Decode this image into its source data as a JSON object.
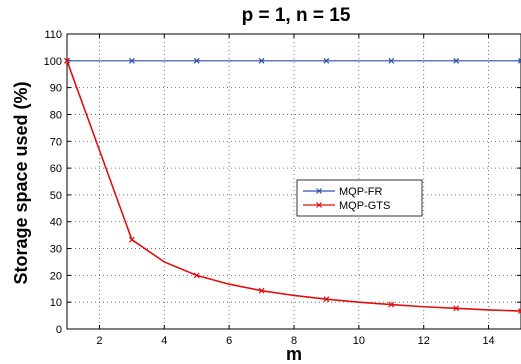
{
  "chart_data": {
    "type": "line",
    "title": "p = 1, n = 15",
    "xlabel": "m",
    "ylabel": "Storage space used (%)",
    "xlim": [
      1,
      15
    ],
    "ylim": [
      0,
      110
    ],
    "xticks": [
      2,
      4,
      6,
      8,
      10,
      12,
      14
    ],
    "yticks": [
      0,
      10,
      20,
      30,
      40,
      50,
      60,
      70,
      80,
      90,
      100,
      110
    ],
    "grid": true,
    "legend_position": "center-right",
    "series": [
      {
        "name": "MQP-FR",
        "color": "#3050b0",
        "marker": "x",
        "x": [
          1,
          3,
          5,
          7,
          9,
          11,
          13,
          15
        ],
        "y": [
          100,
          100,
          100,
          100,
          100,
          100,
          100,
          100
        ]
      },
      {
        "name": "MQP-GTS",
        "color": "#e01010",
        "marker": "x",
        "x": [
          1,
          2,
          3,
          4,
          5,
          6,
          7,
          8,
          9,
          10,
          11,
          12,
          13,
          14,
          15
        ],
        "y": [
          100,
          66.7,
          33.3,
          25,
          20,
          16.7,
          14.3,
          12.5,
          11.1,
          10,
          9.1,
          8.3,
          7.7,
          7.1,
          6.7
        ],
        "marker_x": [
          1,
          3,
          5,
          7,
          9,
          11,
          13,
          15
        ]
      }
    ]
  }
}
